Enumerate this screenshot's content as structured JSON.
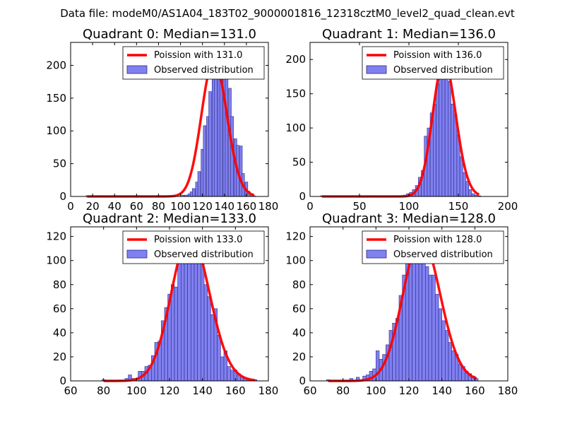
{
  "figure": {
    "suptitle": "Data file: modeM0/AS1A04_183T02_9000001816_12318cztM0_level2_quad_clean.evt"
  },
  "colors": {
    "bar_fill": "#8080f0",
    "bar_edge": "#2a2a8a",
    "curve": "#ff0000",
    "axes": "#000000"
  },
  "chart_data": [
    {
      "type": "bar",
      "title": "Quadrant 0: Median=131.0",
      "median": 131.0,
      "xlim": [
        0,
        180
      ],
      "ylim": [
        0,
        235
      ],
      "xticks": [
        0,
        20,
        40,
        60,
        80,
        100,
        120,
        140,
        160,
        180
      ],
      "yticks": [
        0,
        50,
        100,
        150,
        200
      ],
      "bin_width": 2.5,
      "bins": [
        [
          15,
          1
        ],
        [
          25,
          1
        ],
        [
          40,
          1
        ],
        [
          62,
          1
        ],
        [
          80,
          1
        ],
        [
          95,
          1
        ],
        [
          102,
          2
        ],
        [
          105,
          2
        ],
        [
          108,
          4
        ],
        [
          110,
          7
        ],
        [
          112,
          12
        ],
        [
          115,
          22
        ],
        [
          117,
          38
        ],
        [
          120,
          72
        ],
        [
          122,
          108
        ],
        [
          125,
          122
        ],
        [
          127,
          160
        ],
        [
          130,
          183
        ],
        [
          132,
          195
        ],
        [
          135,
          228
        ],
        [
          137,
          210
        ],
        [
          140,
          222
        ],
        [
          142,
          200
        ],
        [
          145,
          165
        ],
        [
          147,
          122
        ],
        [
          150,
          88
        ],
        [
          152,
          78
        ],
        [
          155,
          77
        ],
        [
          157,
          35
        ],
        [
          160,
          22
        ],
        [
          162,
          8
        ],
        [
          165,
          3
        ],
        [
          167,
          1
        ]
      ],
      "legend": {
        "curve_label": "Poission with 131.0",
        "bars_label": "Observed distribution",
        "position": "top-right"
      }
    },
    {
      "type": "bar",
      "title": "Quadrant 1: Median=136.0",
      "median": 136.0,
      "xlim": [
        0,
        200
      ],
      "ylim": [
        0,
        225
      ],
      "xticks": [
        0,
        50,
        100,
        150,
        200
      ],
      "yticks": [
        0,
        50,
        100,
        150,
        200
      ],
      "bin_width": 3.0,
      "bins": [
        [
          12,
          1
        ],
        [
          60,
          1
        ],
        [
          90,
          1
        ],
        [
          96,
          2
        ],
        [
          99,
          4
        ],
        [
          102,
          6
        ],
        [
          105,
          10
        ],
        [
          108,
          16
        ],
        [
          111,
          28
        ],
        [
          114,
          38
        ],
        [
          117,
          88
        ],
        [
          120,
          100
        ],
        [
          123,
          122
        ],
        [
          126,
          135
        ],
        [
          129,
          165
        ],
        [
          132,
          180
        ],
        [
          135,
          205
        ],
        [
          138,
          183
        ],
        [
          141,
          168
        ],
        [
          144,
          135
        ],
        [
          147,
          120
        ],
        [
          150,
          90
        ],
        [
          153,
          58
        ],
        [
          156,
          35
        ],
        [
          159,
          22
        ],
        [
          162,
          10
        ],
        [
          165,
          4
        ],
        [
          168,
          2
        ],
        [
          171,
          1
        ]
      ],
      "legend": {
        "curve_label": "Poission with 136.0",
        "bars_label": "Observed distribution",
        "position": "top-right"
      }
    },
    {
      "type": "bar",
      "title": "Quadrant 2: Median=133.0",
      "median": 133.0,
      "xlim": [
        60,
        180
      ],
      "ylim": [
        0,
        128
      ],
      "xticks": [
        60,
        80,
        100,
        120,
        140,
        160,
        180
      ],
      "yticks": [
        0,
        20,
        40,
        60,
        80,
        100,
        120
      ],
      "bin_width": 2.0,
      "bins": [
        [
          80,
          1
        ],
        [
          94,
          2
        ],
        [
          96,
          5
        ],
        [
          98,
          2
        ],
        [
          102,
          8
        ],
        [
          104,
          8
        ],
        [
          106,
          12
        ],
        [
          108,
          13
        ],
        [
          110,
          21
        ],
        [
          112,
          32
        ],
        [
          114,
          33
        ],
        [
          116,
          50
        ],
        [
          118,
          61
        ],
        [
          120,
          72
        ],
        [
          122,
          80
        ],
        [
          124,
          78
        ],
        [
          126,
          110
        ],
        [
          128,
          118
        ],
        [
          130,
          112
        ],
        [
          132,
          114
        ],
        [
          134,
          117
        ],
        [
          136,
          110
        ],
        [
          138,
          101
        ],
        [
          140,
          98
        ],
        [
          142,
          80
        ],
        [
          144,
          70
        ],
        [
          146,
          55
        ],
        [
          148,
          60
        ],
        [
          150,
          38
        ],
        [
          152,
          20
        ],
        [
          154,
          25
        ],
        [
          156,
          12
        ],
        [
          158,
          9
        ],
        [
          160,
          9
        ],
        [
          162,
          6
        ],
        [
          164,
          4
        ],
        [
          166,
          2
        ],
        [
          168,
          1
        ],
        [
          170,
          1
        ],
        [
          172,
          1
        ]
      ],
      "legend": {
        "curve_label": "Poission with 133.0",
        "bars_label": "Observed distribution",
        "position": "top-right"
      }
    },
    {
      "type": "bar",
      "title": "Quadrant 3: Median=128.0",
      "median": 128.0,
      "xlim": [
        60,
        180
      ],
      "ylim": [
        0,
        128
      ],
      "xticks": [
        60,
        80,
        100,
        120,
        140,
        160,
        180
      ],
      "yticks": [
        0,
        20,
        40,
        60,
        80,
        100,
        120
      ],
      "bin_width": 2.0,
      "bins": [
        [
          71,
          1
        ],
        [
          85,
          2
        ],
        [
          89,
          3
        ],
        [
          93,
          4
        ],
        [
          95,
          5
        ],
        [
          97,
          8
        ],
        [
          99,
          10
        ],
        [
          101,
          25
        ],
        [
          103,
          18
        ],
        [
          105,
          22
        ],
        [
          107,
          30
        ],
        [
          109,
          42
        ],
        [
          111,
          48
        ],
        [
          113,
          52
        ],
        [
          115,
          71
        ],
        [
          117,
          88
        ],
        [
          119,
          99
        ],
        [
          121,
          98
        ],
        [
          123,
          108
        ],
        [
          125,
          118
        ],
        [
          127,
          110
        ],
        [
          129,
          100
        ],
        [
          131,
          95
        ],
        [
          133,
          88
        ],
        [
          135,
          88
        ],
        [
          137,
          72
        ],
        [
          139,
          60
        ],
        [
          141,
          50
        ],
        [
          143,
          42
        ],
        [
          145,
          32
        ],
        [
          147,
          25
        ],
        [
          149,
          22
        ],
        [
          151,
          14
        ],
        [
          153,
          12
        ],
        [
          155,
          8
        ],
        [
          157,
          6
        ],
        [
          159,
          4
        ],
        [
          161,
          2
        ]
      ],
      "legend": {
        "curve_label": "Poission with 128.0",
        "bars_label": "Observed distribution",
        "position": "top-right"
      }
    }
  ]
}
